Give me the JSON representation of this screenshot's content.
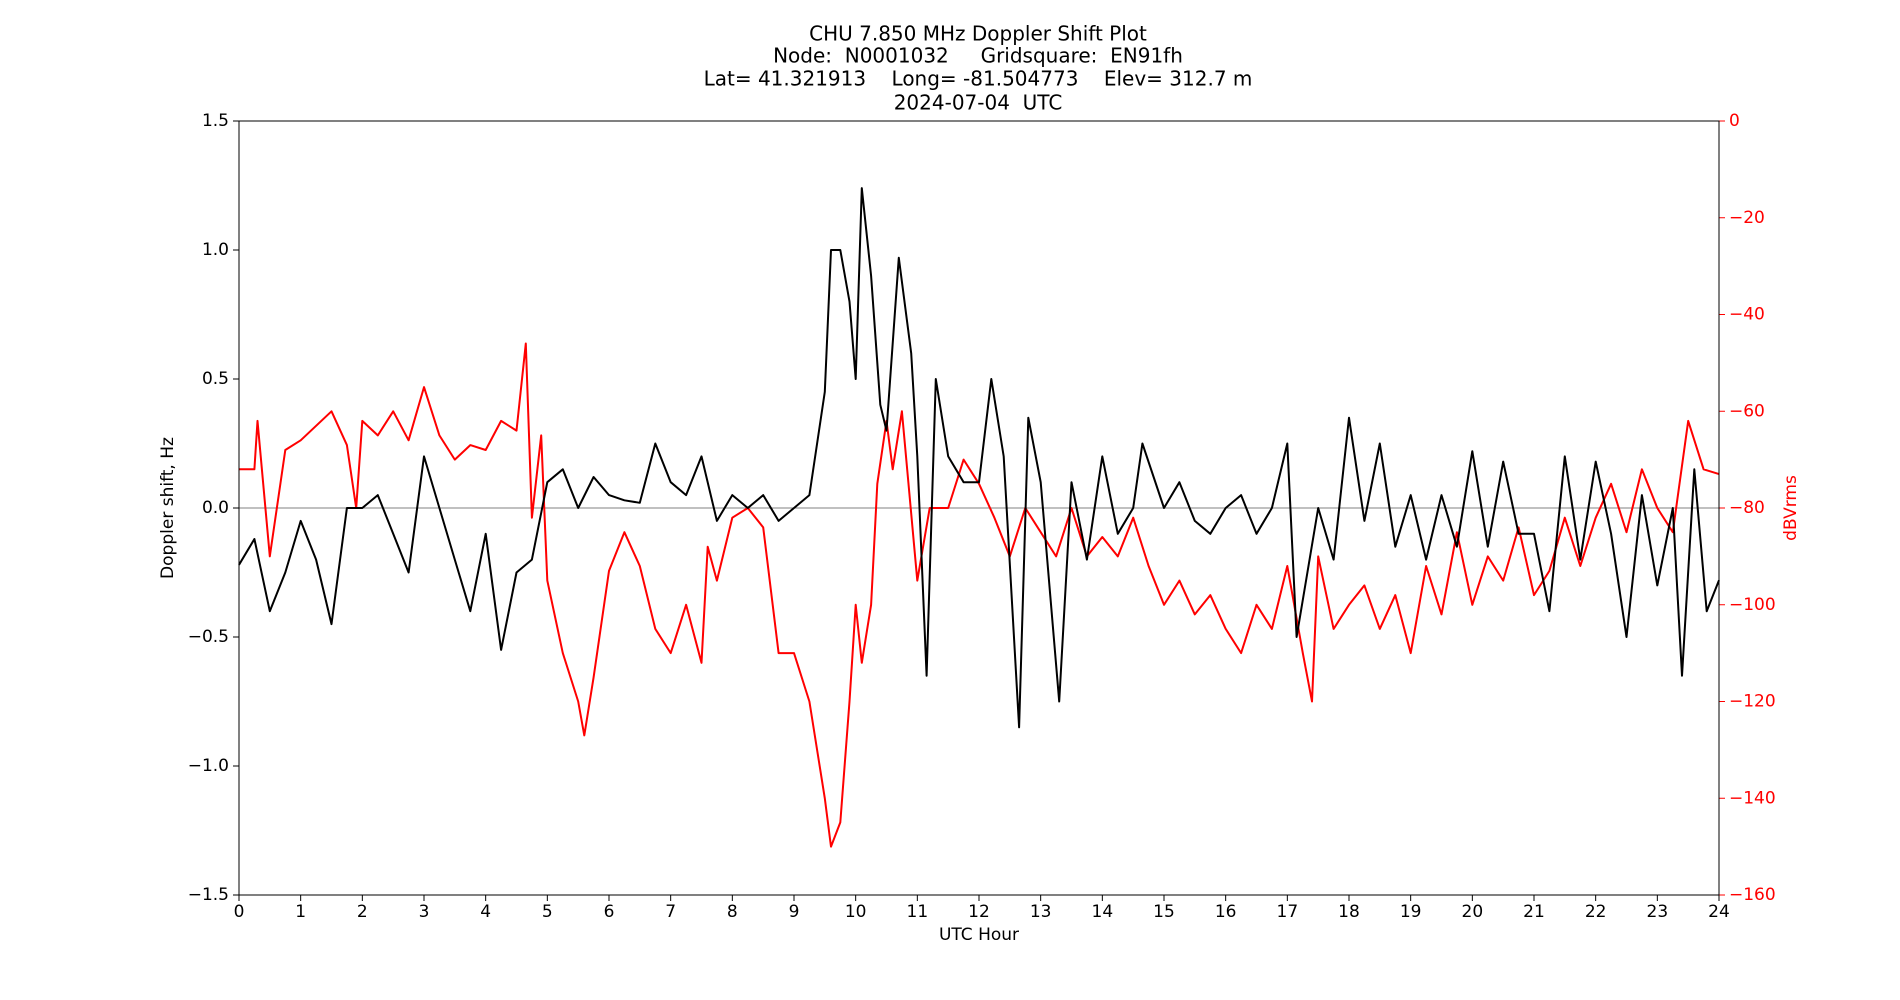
{
  "chart_data": {
    "type": "line",
    "title": [
      "CHU 7.850 MHz Doppler Shift Plot",
      "Node:  N0001032     Gridsquare:  EN91fh",
      "Lat= 41.321913    Long= -81.504773    Elev= 312.7 m",
      "2024-07-04  UTC"
    ],
    "x_label": "UTC Hour",
    "y_label": "Doppler shift, Hz",
    "y2_label": "dBVrms",
    "xlim": [
      0,
      24
    ],
    "xticks": [
      0,
      1,
      2,
      3,
      4,
      5,
      6,
      7,
      8,
      9,
      10,
      11,
      12,
      13,
      14,
      15,
      16,
      17,
      18,
      19,
      20,
      21,
      22,
      23,
      24
    ],
    "ylim": [
      -1.5,
      1.5
    ],
    "yticks": [
      {
        "value": -1.5,
        "label": "−1.5"
      },
      {
        "value": -1,
        "label": "−1.0"
      },
      {
        "value": -0.5,
        "label": "−0.5"
      },
      {
        "value": 0,
        "label": "0.0"
      },
      0.5,
      {
        "value": 1,
        "label": "1.0"
      },
      1.5
    ],
    "y2lim": [
      -160,
      0
    ],
    "y2ticks": [
      {
        "value": -160,
        "label": "−160"
      },
      {
        "value": -140,
        "label": "−140"
      },
      {
        "value": -120,
        "label": "−120"
      },
      {
        "value": -100,
        "label": "−100"
      },
      {
        "value": -80,
        "label": "−80"
      },
      {
        "value": -60,
        "label": "−60"
      },
      {
        "value": -40,
        "label": "−40"
      },
      {
        "value": -20,
        "label": "−20"
      },
      0
    ],
    "y2_color": "#ff0000",
    "reference_line": 0,
    "reference_color": "#808080",
    "series": [
      {
        "name": "Doppler shift",
        "color": "#000000",
        "axis": "y",
        "x": [
          0,
          0.25,
          0.5,
          0.75,
          1,
          1.25,
          1.5,
          1.75,
          2,
          2.25,
          2.5,
          2.75,
          3,
          3.25,
          3.5,
          3.75,
          4,
          4.25,
          4.5,
          4.75,
          5,
          5.25,
          5.5,
          5.75,
          6,
          6.25,
          6.5,
          6.75,
          7,
          7.25,
          7.5,
          7.75,
          8,
          8.25,
          8.5,
          8.75,
          9,
          9.25,
          9.5,
          9.6,
          9.75,
          9.9,
          10,
          10.1,
          10.25,
          10.4,
          10.5,
          10.7,
          10.9,
          11,
          11.15,
          11.3,
          11.5,
          11.75,
          12,
          12.2,
          12.4,
          12.65,
          12.8,
          13,
          13.3,
          13.5,
          13.75,
          14,
          14.25,
          14.5,
          14.65,
          15,
          15.25,
          15.5,
          15.75,
          16,
          16.25,
          16.5,
          16.75,
          17,
          17.15,
          17.5,
          17.75,
          18,
          18.25,
          18.5,
          18.75,
          19,
          19.25,
          19.5,
          19.75,
          20,
          20.25,
          20.5,
          20.75,
          21,
          21.25,
          21.5,
          21.75,
          22,
          22.25,
          22.5,
          22.75,
          23,
          23.25,
          23.4,
          23.6,
          23.8,
          24
        ],
        "values": [
          -0.22,
          -0.12,
          -0.4,
          -0.25,
          -0.05,
          -0.2,
          -0.45,
          0,
          0,
          0.05,
          -0.1,
          -0.25,
          0.2,
          0,
          -0.2,
          -0.4,
          -0.1,
          -0.55,
          -0.25,
          -0.2,
          0.1,
          0.15,
          0,
          0.12,
          0.05,
          0.03,
          0.02,
          0.25,
          0.1,
          0.05,
          0.2,
          -0.05,
          0.05,
          0,
          0.05,
          -0.05,
          0,
          0.05,
          0.45,
          1,
          1,
          0.8,
          0.5,
          1.24,
          0.9,
          0.4,
          0.3,
          0.97,
          0.6,
          0.2,
          -0.65,
          0.5,
          0.2,
          0.1,
          0.1,
          0.5,
          0.2,
          -0.85,
          0.35,
          0.1,
          -0.75,
          0.1,
          -0.2,
          0.2,
          -0.1,
          0,
          0.25,
          0,
          0.1,
          -0.05,
          -0.1,
          0,
          0.05,
          -0.1,
          0,
          0.25,
          -0.5,
          0,
          -0.2,
          0.35,
          -0.05,
          0.25,
          -0.15,
          0.05,
          -0.2,
          0.05,
          -0.15,
          0.22,
          -0.15,
          0.18,
          -0.1,
          -0.1,
          -0.4,
          0.2,
          -0.2,
          0.18,
          -0.1,
          -0.5,
          0.05,
          -0.3,
          0,
          -0.65,
          0.15,
          -0.4,
          -0.28
        ]
      },
      {
        "name": "dBVrms",
        "color": "#ff0000",
        "axis": "y2",
        "x": [
          0,
          0.25,
          0.3,
          0.5,
          0.75,
          1,
          1.25,
          1.5,
          1.75,
          1.9,
          2,
          2.25,
          2.5,
          2.75,
          3,
          3.25,
          3.5,
          3.75,
          4,
          4.25,
          4.5,
          4.65,
          4.75,
          4.9,
          5,
          5.25,
          5.5,
          5.6,
          5.75,
          6,
          6.25,
          6.5,
          6.75,
          7,
          7.25,
          7.5,
          7.6,
          7.75,
          8,
          8.25,
          8.5,
          8.75,
          9,
          9.25,
          9.5,
          9.6,
          9.75,
          9.9,
          10,
          10.1,
          10.25,
          10.35,
          10.5,
          10.6,
          10.75,
          11,
          11.2,
          11.5,
          11.75,
          12,
          12.25,
          12.5,
          12.75,
          13,
          13.25,
          13.5,
          13.75,
          14,
          14.25,
          14.5,
          14.75,
          15,
          15.25,
          15.5,
          15.75,
          16,
          16.25,
          16.5,
          16.75,
          17,
          17.25,
          17.4,
          17.5,
          17.75,
          18,
          18.25,
          18.5,
          18.75,
          19,
          19.25,
          19.5,
          19.75,
          20,
          20.25,
          20.5,
          20.75,
          21,
          21.25,
          21.5,
          21.75,
          22,
          22.25,
          22.5,
          22.75,
          23,
          23.25,
          23.5,
          23.75,
          24
        ],
        "values": [
          -72,
          -72,
          -62,
          -90,
          -68,
          -66,
          -63,
          -60,
          -67,
          -80,
          -62,
          -65,
          -60,
          -66,
          -55,
          -65,
          -70,
          -67,
          -68,
          -62,
          -64,
          -46,
          -82,
          -65,
          -95,
          -110,
          -120,
          -127,
          -115,
          -93,
          -85,
          -92,
          -105,
          -110,
          -100,
          -112,
          -88,
          -95,
          -82,
          -80,
          -84,
          -110,
          -110,
          -120,
          -140,
          -150,
          -145,
          -120,
          -100,
          -112,
          -100,
          -75,
          -62,
          -72,
          -60,
          -95,
          -80,
          -80,
          -70,
          -75,
          -82,
          -90,
          -80,
          -85,
          -90,
          -80,
          -90,
          -86,
          -90,
          -82,
          -92,
          -100,
          -95,
          -102,
          -98,
          -105,
          -110,
          -100,
          -105,
          -92,
          -110,
          -120,
          -90,
          -105,
          -100,
          -96,
          -105,
          -98,
          -110,
          -92,
          -102,
          -85,
          -100,
          -90,
          -95,
          -84,
          -98,
          -93,
          -82,
          -92,
          -82,
          -75,
          -85,
          -72,
          -80,
          -85,
          -62,
          -72,
          -73
        ]
      }
    ]
  }
}
